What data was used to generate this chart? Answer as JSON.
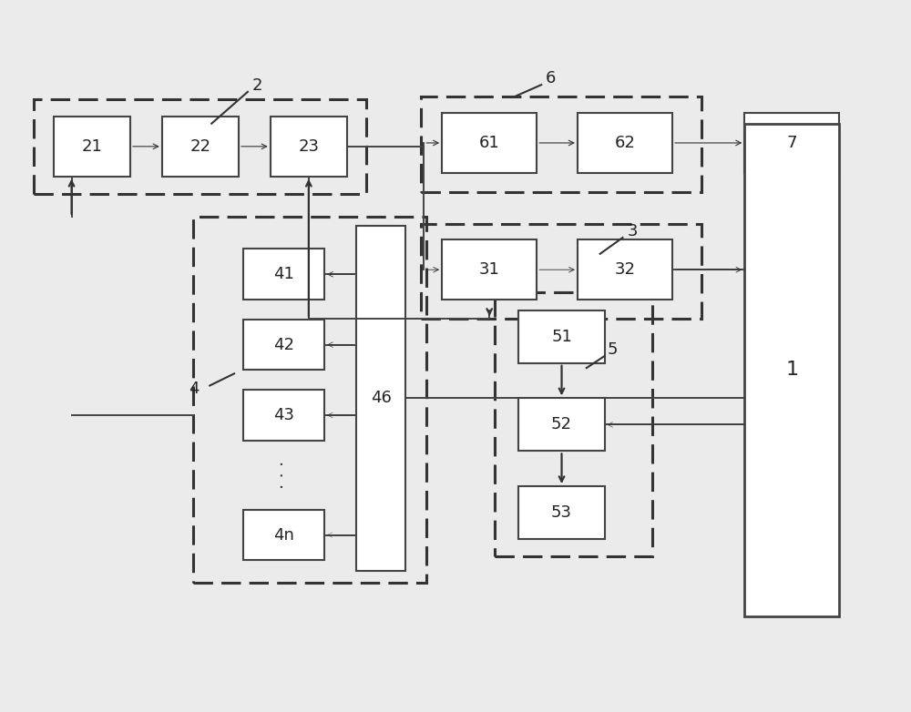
{
  "bg_color": "#ebebeb",
  "fig_width": 10.0,
  "fig_height": 7.82,
  "blocks": {
    "21": [
      0.055,
      0.755,
      0.085,
      0.085
    ],
    "22": [
      0.175,
      0.755,
      0.085,
      0.085
    ],
    "23": [
      0.295,
      0.755,
      0.085,
      0.085
    ],
    "61": [
      0.485,
      0.76,
      0.105,
      0.085
    ],
    "62": [
      0.635,
      0.76,
      0.105,
      0.085
    ],
    "7": [
      0.82,
      0.76,
      0.105,
      0.085
    ],
    "31": [
      0.485,
      0.58,
      0.105,
      0.085
    ],
    "32": [
      0.635,
      0.58,
      0.105,
      0.085
    ],
    "41": [
      0.265,
      0.58,
      0.09,
      0.072
    ],
    "42": [
      0.265,
      0.48,
      0.09,
      0.072
    ],
    "43": [
      0.265,
      0.38,
      0.09,
      0.072
    ],
    "4n": [
      0.265,
      0.21,
      0.09,
      0.072
    ],
    "46": [
      0.39,
      0.195,
      0.055,
      0.49
    ],
    "51": [
      0.57,
      0.49,
      0.095,
      0.075
    ],
    "52": [
      0.57,
      0.365,
      0.095,
      0.075
    ],
    "53": [
      0.57,
      0.24,
      0.095,
      0.075
    ],
    "1": [
      0.82,
      0.13,
      0.105,
      0.7
    ]
  },
  "dashed_groups": {
    "2": [
      0.033,
      0.73,
      0.368,
      0.135
    ],
    "6": [
      0.462,
      0.733,
      0.31,
      0.135
    ],
    "3": [
      0.462,
      0.553,
      0.31,
      0.135
    ],
    "4": [
      0.21,
      0.178,
      0.258,
      0.52
    ],
    "5": [
      0.543,
      0.215,
      0.175,
      0.375
    ]
  }
}
